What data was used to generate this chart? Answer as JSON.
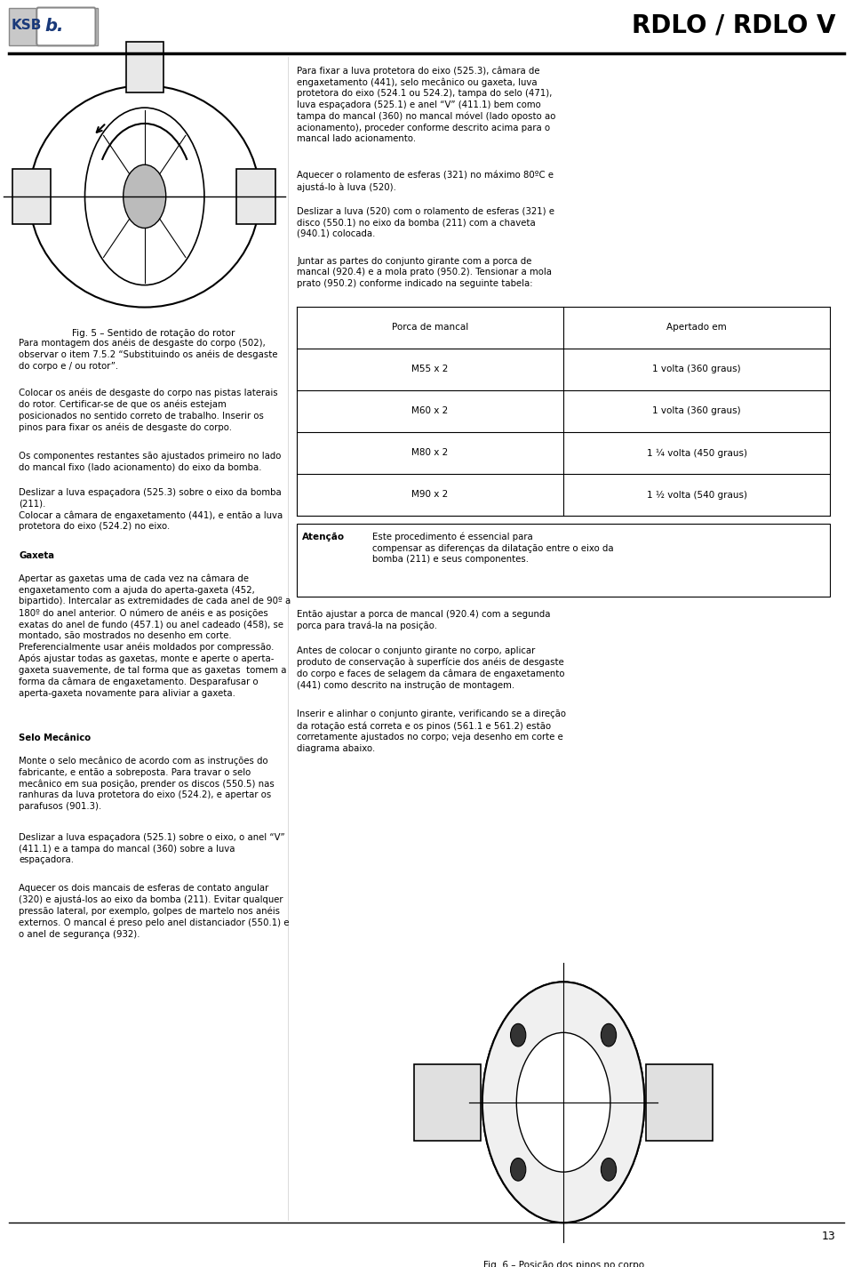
{
  "page_width": 9.6,
  "page_height": 14.25,
  "bg_color": "#ffffff",
  "header_title": "RDLO / RDLO V",
  "page_number": "13",
  "text_color": "#000000",
  "table_header_row": [
    "Porca de mancal",
    "Apertado em"
  ],
  "table_rows": [
    [
      "M55 x 2",
      "1 volta (360 graus)"
    ],
    [
      "M60 x 2",
      "1 volta (360 graus)"
    ],
    [
      "M80 x 2",
      "1 ¼ volta (450 graus)"
    ],
    [
      "M90 x 2",
      "1 ½ volta (540 graus)"
    ]
  ],
  "fig5_caption": "Fig. 5 – Sentido de rotação do rotor",
  "fig6_caption": "Fig. 6 – Posição dos pinos no corpo",
  "right_texts": [
    "Para fixar a luva protetora do eixo (525.3), câmara de\nengaxetamento (441), selo mecânico ou gaxeta, luva\nprotetora do eixo (524.1 ou 524.2), tampa do selo (471),\nluva espaçadora (525.1) e anel “V” (411.1) bem como\ntampa do mancal (360) no mancal móvel (lado oposto ao\nacionamento), proceder conforme descrito acima para o\nmancal lado acionamento.",
    "Aquecer o rolamento de esferas (321) no máximo 80ºC e\najustá-lo à luva (520).",
    "Deslizar a luva (520) com o rolamento de esferas (321) e\ndisco (550.1) no eixo da bomba (211) com a chaveta\n(940.1) colocada.",
    "Juntar as partes do conjunto girante com a porca de\nmancal (920.4) e a mola prato (950.2). Tensionar a mola\nprato (950.2) conforme indicado na seguinte tabela:"
  ],
  "right_after_table": [
    "Então ajustar a porca de mancal (920.4) com a segunda\nporca para travá-la na posição.",
    "Antes de colocar o conjunto girante no corpo, aplicar\nproduto de conservação à superfície dos anéis de desgaste\ndo corpo e faces de selagem da câmara de engaxetamento\n(441) como descrito na instrução de montagem.",
    "Inserir e alinhar o conjunto girante, verificando se a direção\nda rotação está correta e os pinos (561.1 e 561.2) estão\ncorretamente ajustados no corpo; veja desenho em corte e\ndiagrama abaixo."
  ],
  "left_texts": [
    [
      "Para montagem dos anéis de desgaste do corpo (502),\nobservar o item 7.5.2 “Substituindo os anéis de desgaste\ndo corpo e / ou rotor”.",
      "normal"
    ],
    [
      "Colocar os anéis de desgaste do corpo nas pistas laterais\ndo rotor. Certificar-se de que os anéis estejam\nposicionados no sentido correto de trabalho. Inserir os\npinos para fixar os anéis de desgaste do corpo.",
      "normal"
    ],
    [
      "Os componentes restantes são ajustados primeiro no lado\ndo mancal fixo (lado acionamento) do eixo da bomba.",
      "normal"
    ],
    [
      "Deslizar a luva espaçadora (525.3) sobre o eixo da bomba\n(211).\nColocar a câmara de engaxetamento (441), e então a luva\nprotetora do eixo (524.2) no eixo.",
      "normal"
    ],
    [
      "Gaxeta",
      "bold"
    ],
    [
      "Apertar as gaxetas uma de cada vez na câmara de\nengaxetamento com a ajuda do aperta-gaxeta (452,\nbipartido). Intercalar as extremidades de cada anel de 90º a\n180º do anel anterior. O número de anéis e as posições\nexatas do anel de fundo (457.1) ou anel cadeado (458), se\nmontado, são mostrados no desenho em corte.\nPreferencialmente usar anéis moldados por compressão.\nApós ajustar todas as gaxetas, monte e aperte o aperta-\ngaxeta suavemente, de tal forma que as gaxetas  tomem a\nforma da câmara de engaxetamento. Desparafusar o\naperta-gaxeta novamente para aliviar a gaxeta.",
      "normal"
    ],
    [
      "Selo Mecânico",
      "bold"
    ],
    [
      "Monte o selo mecânico de acordo com as instruções do\nfabricante, e então a sobreposta. Para travar o selo\nmecânico em sua posição, prender os discos (550.5) nas\nranhuras da luva protetora do eixo (524.2), e apertar os\nparafusos (901.3).",
      "normal"
    ],
    [
      "Deslizar a luva espaçadora (525.1) sobre o eixo, o anel “V”\n(411.1) e a tampa do mancal (360) sobre a luva\nespaçadora.",
      "normal"
    ],
    [
      "Aquecer os dois mancais de esferas de contato angular\n(320) e ajustá-los ao eixo da bomba (211). Evitar qualquer\npressão lateral, por exemplo, golpes de martelo nos anéis\nexternos. O mancal é preso pelo anel distanciador (550.1) e\no anel de segurança (932).",
      "normal"
    ]
  ]
}
